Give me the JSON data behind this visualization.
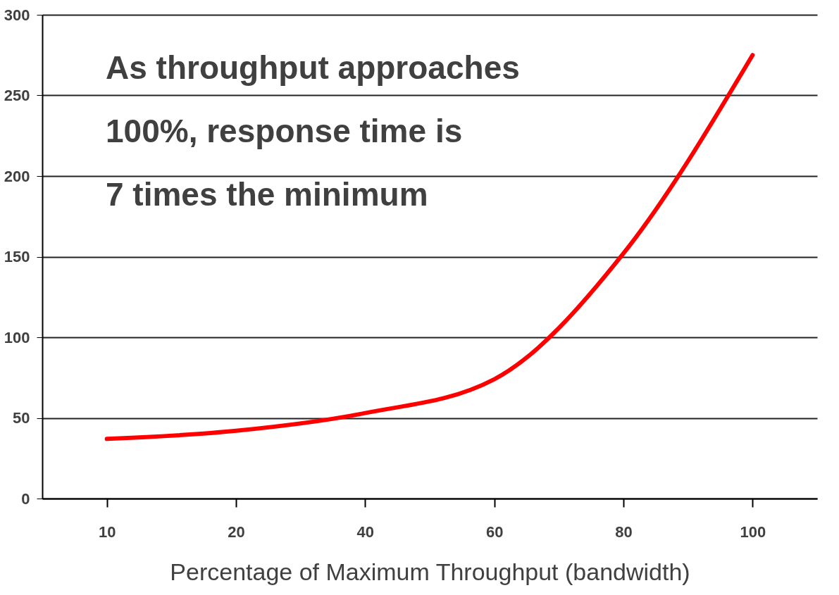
{
  "chart_data": {
    "type": "line",
    "xlabel": "Percentage of Maximum Throughput (bandwidth)",
    "categories": [
      "10",
      "20",
      "40",
      "60",
      "80",
      "100"
    ],
    "series": [
      {
        "color": "#ff0000",
        "values": [
          37,
          42,
          53,
          74,
          152,
          275
        ]
      }
    ],
    "ylim": [
      0,
      300
    ],
    "yticks": [
      0,
      50,
      100,
      150,
      200,
      250,
      300
    ],
    "grid": "y",
    "line_style": "solid",
    "marker": "none",
    "annotations": [
      "As throughput approaches\n100%, response time is\n7 times the minimum"
    ]
  }
}
